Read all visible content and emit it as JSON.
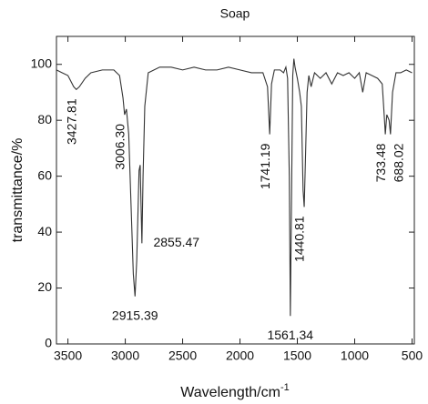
{
  "chart_data": {
    "type": "line",
    "title": "Soap",
    "x_label": "Wavelength/cm",
    "x_label_sup": "-1",
    "y_label": "transmittance/%",
    "xlim": [
      3600,
      480
    ],
    "ylim": [
      0,
      110
    ],
    "xticks": [
      3500,
      3000,
      2500,
      2000,
      1500,
      1000,
      500
    ],
    "yticks": [
      0,
      20,
      40,
      60,
      80,
      100
    ],
    "color": "#333333",
    "x": [
      3600,
      3550,
      3500,
      3450,
      3427,
      3400,
      3350,
      3300,
      3200,
      3100,
      3050,
      3020,
      3006,
      2990,
      2970,
      2950,
      2930,
      2915,
      2900,
      2880,
      2870,
      2860,
      2855,
      2845,
      2830,
      2800,
      2700,
      2600,
      2500,
      2400,
      2300,
      2200,
      2100,
      2000,
      1900,
      1800,
      1760,
      1741,
      1725,
      1700,
      1650,
      1620,
      1600,
      1585,
      1570,
      1561,
      1550,
      1540,
      1530,
      1520,
      1500,
      1480,
      1465,
      1450,
      1440,
      1430,
      1415,
      1400,
      1380,
      1350,
      1300,
      1250,
      1200,
      1150,
      1100,
      1050,
      1000,
      960,
      930,
      900,
      850,
      800,
      760,
      740,
      733,
      720,
      700,
      688,
      670,
      640,
      600,
      550,
      500
    ],
    "values": [
      98,
      97,
      96,
      92,
      91,
      92,
      95,
      97,
      98,
      98,
      96,
      88,
      82,
      84,
      75,
      50,
      25,
      17,
      30,
      62,
      64,
      45,
      36,
      60,
      85,
      97,
      99,
      99,
      98,
      99,
      98,
      98,
      99,
      98,
      97,
      97,
      92,
      75,
      93,
      98,
      98,
      97,
      99,
      95,
      60,
      10,
      55,
      96,
      102,
      99,
      95,
      90,
      85,
      55,
      49,
      65,
      90,
      96,
      92,
      97,
      95,
      97,
      93,
      97,
      96,
      97,
      95,
      97,
      90,
      97,
      96,
      95,
      93,
      80,
      75,
      82,
      80,
      75,
      90,
      97,
      97,
      98,
      97
    ],
    "annotations": [
      {
        "x": 3427.81,
        "label": "3427.81",
        "rotated": true
      },
      {
        "x": 3006.3,
        "label": "3006.30",
        "rotated": true
      },
      {
        "x": 2855.47,
        "label": "2855.47",
        "rotated": false
      },
      {
        "x": 2915.39,
        "label": "2915.39",
        "rotated": false
      },
      {
        "x": 1741.19,
        "label": "1741.19",
        "rotated": true
      },
      {
        "x": 1561.34,
        "label": "1561.34",
        "rotated": false
      },
      {
        "x": 1440.81,
        "label": "1440.81",
        "rotated": true
      },
      {
        "x": 733.48,
        "label": "733.48",
        "rotated": true
      },
      {
        "x": 688.02,
        "label": "688.02",
        "rotated": true
      }
    ]
  }
}
